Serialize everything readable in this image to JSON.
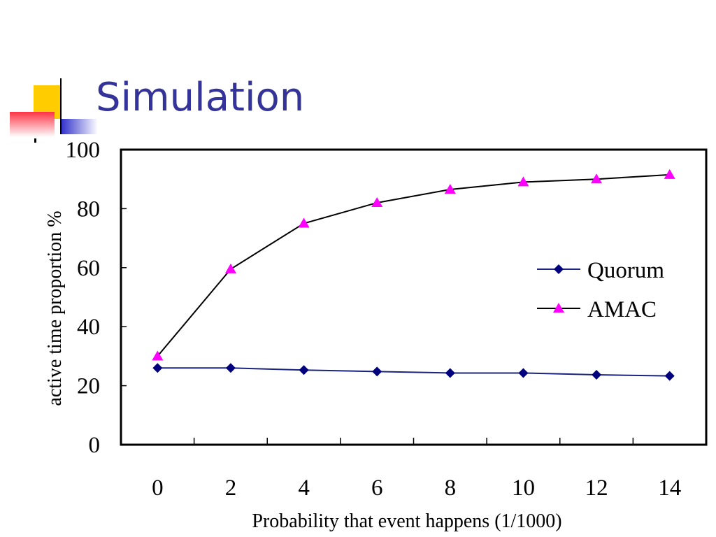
{
  "slide": {
    "title": "Simulation",
    "accent_color": "#333399"
  },
  "chart_data": {
    "type": "line",
    "xlabel": "Probability that event happens (1/1000)",
    "ylabel": "active time proportion %",
    "xlim": [
      0,
      14
    ],
    "ylim": [
      0,
      100
    ],
    "x_ticks": [
      0,
      2,
      4,
      6,
      8,
      10,
      12,
      14
    ],
    "y_ticks": [
      0,
      20,
      40,
      60,
      80,
      100
    ],
    "grid": false,
    "legend_position": "right-middle",
    "x": [
      0,
      2,
      4,
      6,
      8,
      10,
      12,
      14
    ],
    "series": [
      {
        "name": "Quorum",
        "marker": "diamond",
        "line_color": "#1a237e",
        "marker_color": "#00007f",
        "values": [
          26,
          26,
          25.3,
          24.8,
          24.3,
          24.3,
          23.7,
          23.3
        ]
      },
      {
        "name": "AMAC",
        "marker": "triangle",
        "line_color": "#000000",
        "marker_color": "#ff00ff",
        "values": [
          30,
          59.5,
          75,
          82,
          86.5,
          89,
          90,
          91.5
        ]
      }
    ]
  }
}
